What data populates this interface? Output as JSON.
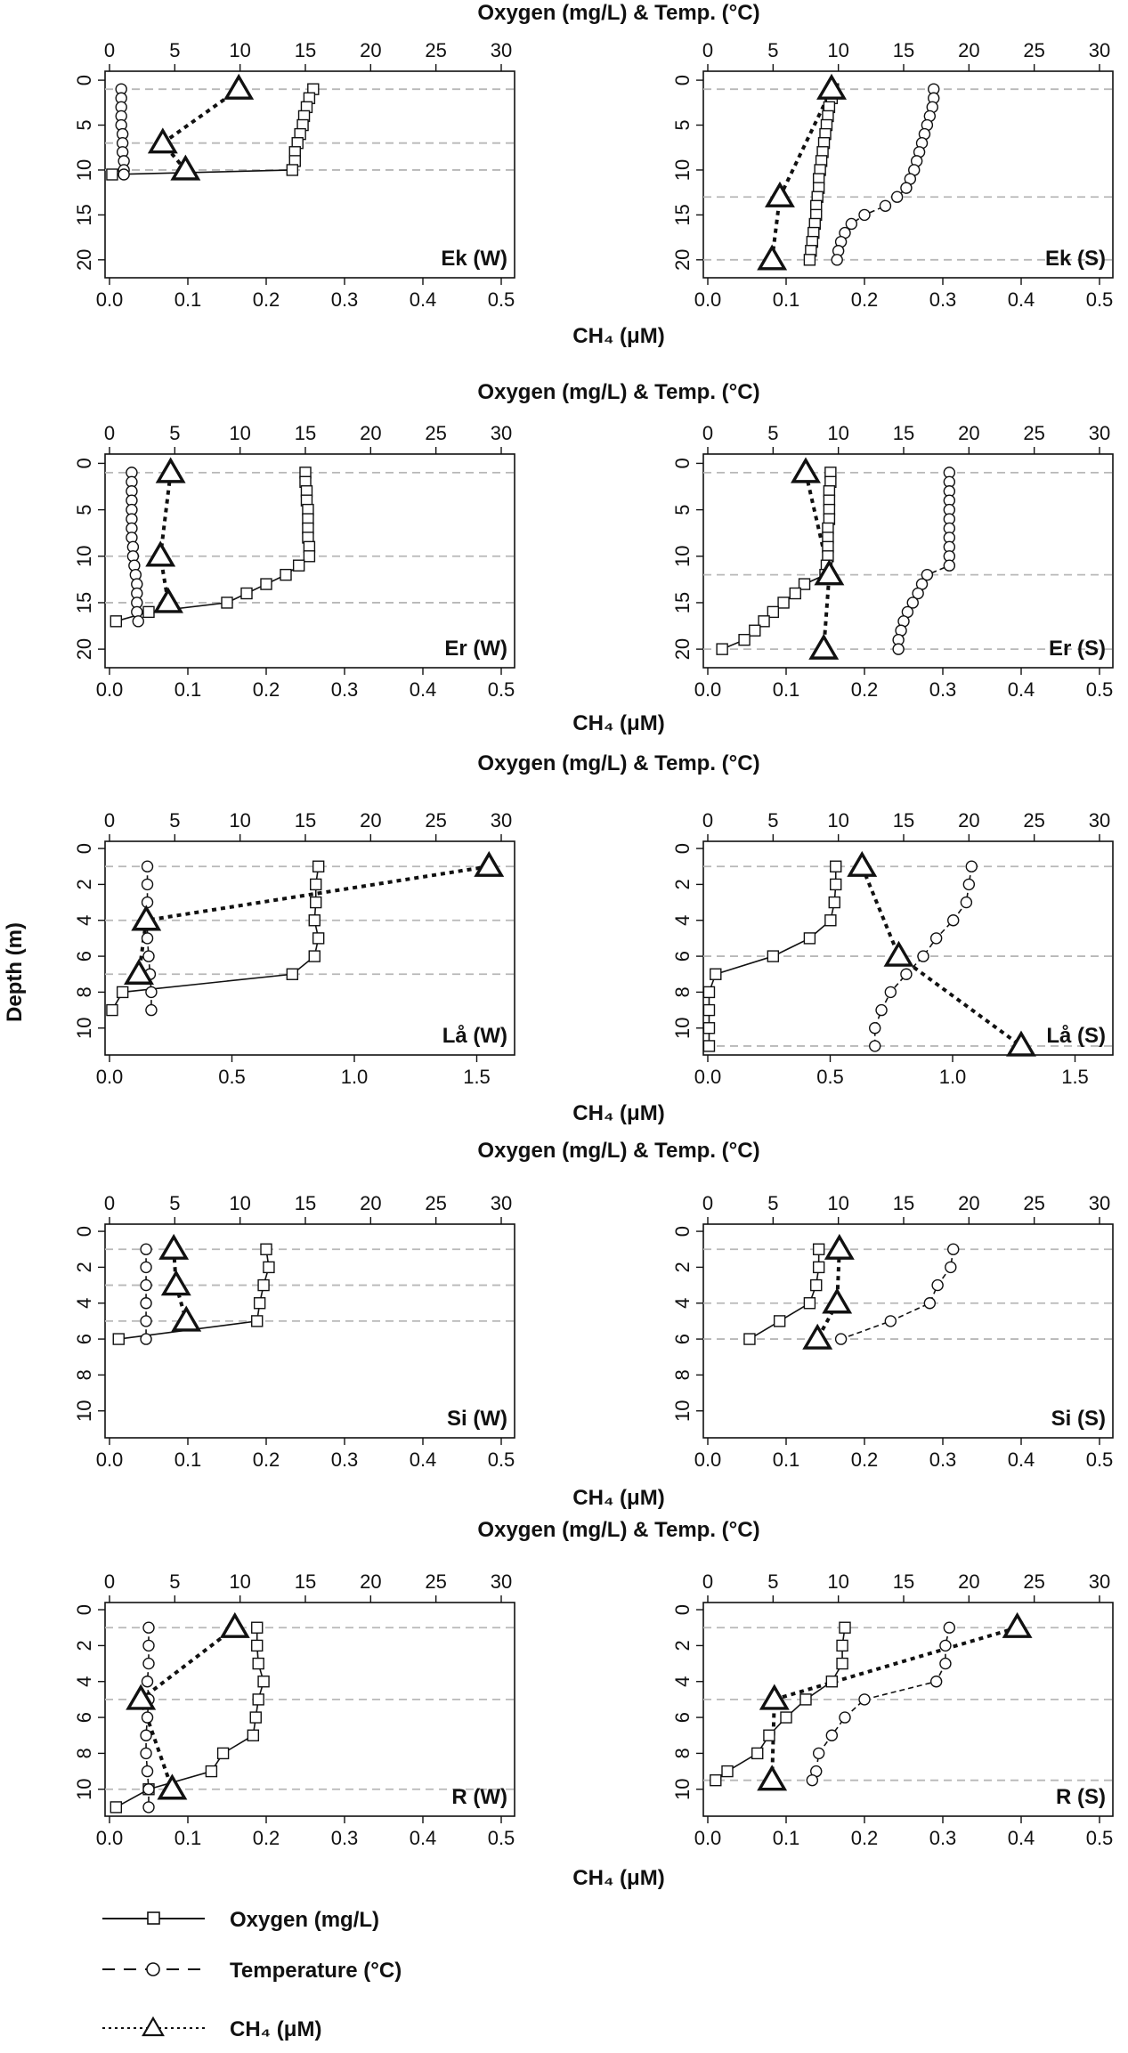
{
  "top_axis_label": "Oxygen (mg/L) & Temp. (°C)",
  "bottom_axis_label": "CH₄ (μM)",
  "y_axis_label": "Depth (m)",
  "legend": {
    "oxygen": "Oxygen (mg/L)",
    "temperature": "Temperature (°C)",
    "ch4": "CH₄ (μM)"
  },
  "chart_data": [
    {
      "type": "line",
      "label": "Ek (W)",
      "ylim": [
        22,
        -1
      ],
      "yticks": [
        0,
        5,
        10,
        15,
        20
      ],
      "top_ticks": [
        0,
        5,
        10,
        15,
        20,
        25,
        30
      ],
      "top_lim": [
        0,
        30
      ],
      "bottom_ticks": [
        "0.0",
        "0.1",
        "0.2",
        "0.3",
        "0.4",
        "0.5"
      ],
      "bottom_lim": [
        0,
        0.5
      ],
      "hlines": [
        1,
        7,
        10
      ],
      "oxygen": {
        "depth": [
          1,
          2,
          3,
          4,
          5,
          6,
          7,
          8,
          9,
          10,
          10.5
        ],
        "values": [
          15.6,
          15.3,
          15.1,
          14.9,
          14.8,
          14.6,
          14.4,
          14.2,
          14.2,
          14.0,
          0.2
        ]
      },
      "temperature": {
        "depth": [
          1,
          2,
          3,
          4,
          5,
          6,
          7,
          8,
          9,
          10,
          10.5
        ],
        "values": [
          0.9,
          0.9,
          0.9,
          0.9,
          0.9,
          1.0,
          1.0,
          1.0,
          1.1,
          1.1,
          1.1
        ]
      },
      "ch4": {
        "depth": [
          1,
          7,
          10
        ],
        "values": [
          0.165,
          0.068,
          0.097
        ]
      }
    },
    {
      "type": "line",
      "label": "Ek (S)",
      "ylim": [
        22,
        -1
      ],
      "yticks": [
        0,
        5,
        10,
        15,
        20
      ],
      "top_ticks": [
        0,
        5,
        10,
        15,
        20,
        25,
        30
      ],
      "top_lim": [
        0,
        30
      ],
      "bottom_ticks": [
        "0.0",
        "0.1",
        "0.2",
        "0.3",
        "0.4",
        "0.5"
      ],
      "bottom_lim": [
        0,
        0.5
      ],
      "hlines": [
        1,
        13,
        20
      ],
      "oxygen": {
        "depth": [
          1,
          2,
          3,
          4,
          5,
          6,
          7,
          8,
          9,
          10,
          11,
          12,
          13,
          14,
          15,
          16,
          17,
          18,
          19,
          20
        ],
        "values": [
          9.6,
          9.5,
          9.3,
          9.2,
          9.1,
          9.0,
          8.9,
          8.8,
          8.7,
          8.6,
          8.5,
          8.5,
          8.4,
          8.3,
          8.3,
          8.2,
          8.1,
          8.0,
          7.9,
          7.8
        ]
      },
      "temperature": {
        "depth": [
          1,
          2,
          3,
          4,
          5,
          6,
          7,
          8,
          9,
          10,
          11,
          12,
          13,
          14,
          15,
          16,
          17,
          18,
          19,
          20
        ],
        "values": [
          17.3,
          17.3,
          17.2,
          17.0,
          16.8,
          16.6,
          16.4,
          16.2,
          16.0,
          15.8,
          15.5,
          15.2,
          14.5,
          13.6,
          12.0,
          11.0,
          10.5,
          10.2,
          10.0,
          9.9
        ]
      },
      "ch4": {
        "depth": [
          1,
          13,
          20
        ],
        "values": [
          0.158,
          0.092,
          0.082
        ]
      }
    },
    {
      "type": "line",
      "label": "Er (W)",
      "ylim": [
        22,
        -1
      ],
      "yticks": [
        0,
        5,
        10,
        15,
        20
      ],
      "top_ticks": [
        0,
        5,
        10,
        15,
        20,
        25,
        30
      ],
      "top_lim": [
        0,
        30
      ],
      "bottom_ticks": [
        "0.0",
        "0.1",
        "0.2",
        "0.3",
        "0.4",
        "0.5"
      ],
      "bottom_lim": [
        0,
        0.5
      ],
      "hlines": [
        1,
        10,
        15
      ],
      "oxygen": {
        "depth": [
          1,
          2,
          3,
          4,
          5,
          6,
          7,
          8,
          9,
          10,
          11,
          12,
          13,
          14,
          15,
          16,
          17
        ],
        "values": [
          15.0,
          15.0,
          15.1,
          15.1,
          15.2,
          15.2,
          15.2,
          15.2,
          15.3,
          15.3,
          14.5,
          13.5,
          12.0,
          10.5,
          9.0,
          3.0,
          0.5
        ]
      },
      "temperature": {
        "depth": [
          1,
          2,
          3,
          4,
          5,
          6,
          7,
          8,
          9,
          10,
          11,
          12,
          13,
          14,
          15,
          16,
          17
        ],
        "values": [
          1.7,
          1.7,
          1.7,
          1.7,
          1.7,
          1.7,
          1.7,
          1.7,
          1.8,
          1.8,
          1.9,
          2.0,
          2.1,
          2.1,
          2.1,
          2.1,
          2.2
        ]
      },
      "ch4": {
        "depth": [
          1,
          10,
          15
        ],
        "values": [
          0.078,
          0.065,
          0.075
        ]
      }
    },
    {
      "type": "line",
      "label": "Er (S)",
      "ylim": [
        22,
        -1
      ],
      "yticks": [
        0,
        5,
        10,
        15,
        20
      ],
      "top_ticks": [
        0,
        5,
        10,
        15,
        20,
        25,
        30
      ],
      "top_lim": [
        0,
        30
      ],
      "bottom_ticks": [
        "0.0",
        "0.1",
        "0.2",
        "0.3",
        "0.4",
        "0.5"
      ],
      "bottom_lim": [
        0,
        0.5
      ],
      "hlines": [
        1,
        12,
        20
      ],
      "oxygen": {
        "depth": [
          1,
          2,
          3,
          4,
          5,
          6,
          7,
          8,
          9,
          10,
          11,
          12,
          13,
          14,
          15,
          16,
          17,
          18,
          19,
          20
        ],
        "values": [
          9.4,
          9.4,
          9.3,
          9.3,
          9.3,
          9.3,
          9.2,
          9.2,
          9.2,
          9.2,
          9.1,
          9.0,
          7.4,
          6.7,
          5.8,
          5.0,
          4.3,
          3.6,
          2.8,
          1.1
        ]
      },
      "temperature": {
        "depth": [
          1,
          2,
          3,
          4,
          5,
          6,
          7,
          8,
          9,
          10,
          11,
          12,
          13,
          14,
          15,
          16,
          17,
          18,
          19,
          20
        ],
        "values": [
          18.5,
          18.5,
          18.5,
          18.5,
          18.5,
          18.5,
          18.5,
          18.5,
          18.5,
          18.5,
          18.5,
          16.8,
          16.4,
          16.1,
          15.7,
          15.3,
          15.0,
          14.8,
          14.6,
          14.6
        ]
      },
      "ch4": {
        "depth": [
          1,
          12,
          20
        ],
        "values": [
          0.125,
          0.155,
          0.148
        ]
      }
    },
    {
      "type": "line",
      "label": "Lå (W)",
      "ylim": [
        11.5,
        -0.4
      ],
      "yticks": [
        0,
        2,
        4,
        6,
        8,
        10
      ],
      "top_ticks": [
        0,
        5,
        10,
        15,
        20,
        25,
        30
      ],
      "top_lim": [
        0,
        30
      ],
      "bottom_ticks": [
        "0.0",
        "0.5",
        "1.0",
        "1.5"
      ],
      "bottom_lim": [
        0,
        1.6
      ],
      "hlines": [
        1,
        4,
        7
      ],
      "oxygen": {
        "depth": [
          1,
          2,
          3,
          4,
          5,
          6,
          7,
          8,
          9
        ],
        "values": [
          16.0,
          15.8,
          15.8,
          15.7,
          16.0,
          15.7,
          14.0,
          1.0,
          0.2
        ]
      },
      "temperature": {
        "depth": [
          1,
          2,
          3,
          4,
          5,
          6,
          7,
          8,
          9
        ],
        "values": [
          2.9,
          2.9,
          2.9,
          2.9,
          2.9,
          3.0,
          3.1,
          3.2,
          3.2
        ]
      },
      "ch4": {
        "depth": [
          1,
          4,
          7
        ],
        "values": [
          1.55,
          0.15,
          0.12
        ]
      }
    },
    {
      "type": "line",
      "label": "Lå (S)",
      "ylim": [
        11.5,
        -0.4
      ],
      "yticks": [
        0,
        2,
        4,
        6,
        8,
        10
      ],
      "top_ticks": [
        0,
        5,
        10,
        15,
        20,
        25,
        30
      ],
      "top_lim": [
        0,
        30
      ],
      "bottom_ticks": [
        "0.0",
        "0.5",
        "1.0",
        "1.5"
      ],
      "bottom_lim": [
        0,
        1.6
      ],
      "hlines": [
        1,
        6,
        11
      ],
      "oxygen": {
        "depth": [
          1,
          2,
          3,
          4,
          5,
          6,
          7,
          8,
          9,
          10,
          11
        ],
        "values": [
          9.8,
          9.8,
          9.7,
          9.4,
          7.8,
          5.0,
          0.6,
          0.1,
          0.1,
          0.1,
          0.1
        ]
      },
      "temperature": {
        "depth": [
          1,
          2,
          3,
          4,
          5,
          6,
          7,
          8,
          9,
          10,
          11
        ],
        "values": [
          20.2,
          20.0,
          19.8,
          18.8,
          17.5,
          16.5,
          15.2,
          14.0,
          13.3,
          12.8,
          12.8
        ]
      },
      "ch4": {
        "depth": [
          1,
          6,
          11
        ],
        "values": [
          0.63,
          0.78,
          1.28
        ]
      }
    },
    {
      "type": "line",
      "label": "Si (W)",
      "ylim": [
        11.5,
        -0.4
      ],
      "yticks": [
        0,
        2,
        4,
        6,
        8,
        10
      ],
      "top_ticks": [
        0,
        5,
        10,
        15,
        20,
        25,
        30
      ],
      "top_lim": [
        0,
        30
      ],
      "bottom_ticks": [
        "0.0",
        "0.1",
        "0.2",
        "0.3",
        "0.4",
        "0.5"
      ],
      "bottom_lim": [
        0,
        0.5
      ],
      "hlines": [
        1,
        3,
        5
      ],
      "oxygen": {
        "depth": [
          1,
          2,
          3,
          4,
          5,
          6
        ],
        "values": [
          12.0,
          12.2,
          11.8,
          11.5,
          11.3,
          0.7
        ]
      },
      "temperature": {
        "depth": [
          1,
          2,
          3,
          4,
          5,
          6
        ],
        "values": [
          2.8,
          2.8,
          2.8,
          2.8,
          2.8,
          2.8
        ]
      },
      "ch4": {
        "depth": [
          1,
          3,
          5
        ],
        "values": [
          0.082,
          0.085,
          0.098
        ]
      }
    },
    {
      "type": "line",
      "label": "Si (S)",
      "ylim": [
        11.5,
        -0.4
      ],
      "yticks": [
        0,
        2,
        4,
        6,
        8,
        10
      ],
      "top_ticks": [
        0,
        5,
        10,
        15,
        20,
        25,
        30
      ],
      "top_lim": [
        0,
        30
      ],
      "bottom_ticks": [
        "0.0",
        "0.1",
        "0.2",
        "0.3",
        "0.4",
        "0.5"
      ],
      "bottom_lim": [
        0,
        0.5
      ],
      "hlines": [
        1,
        4,
        6
      ],
      "oxygen": {
        "depth": [
          1,
          2,
          3,
          4,
          5,
          6
        ],
        "values": [
          8.5,
          8.5,
          8.3,
          7.8,
          5.5,
          3.2
        ]
      },
      "temperature": {
        "depth": [
          1,
          2,
          3,
          4,
          5,
          6
        ],
        "values": [
          18.8,
          18.6,
          17.6,
          17.0,
          14.0,
          10.2
        ]
      },
      "ch4": {
        "depth": [
          1,
          4,
          6
        ],
        "values": [
          0.168,
          0.165,
          0.14
        ]
      }
    },
    {
      "type": "line",
      "label": "R (W)",
      "ylim": [
        11.5,
        -0.4
      ],
      "yticks": [
        0,
        2,
        4,
        6,
        8,
        10
      ],
      "top_ticks": [
        0,
        5,
        10,
        15,
        20,
        25,
        30
      ],
      "top_lim": [
        0,
        30
      ],
      "bottom_ticks": [
        "0.0",
        "0.1",
        "0.2",
        "0.3",
        "0.4",
        "0.5"
      ],
      "bottom_lim": [
        0,
        0.5
      ],
      "hlines": [
        1,
        5,
        10
      ],
      "oxygen": {
        "depth": [
          1,
          2,
          3,
          4,
          5,
          6,
          7,
          8,
          9,
          10,
          11
        ],
        "values": [
          11.3,
          11.3,
          11.4,
          11.8,
          11.4,
          11.2,
          11.0,
          8.7,
          7.8,
          3.0,
          0.5
        ]
      },
      "temperature": {
        "depth": [
          1,
          2,
          3,
          4,
          5,
          6,
          7,
          8,
          9,
          10,
          11
        ],
        "values": [
          3.0,
          3.0,
          3.0,
          2.9,
          3.0,
          2.9,
          2.8,
          2.8,
          2.9,
          3.0,
          3.0
        ]
      },
      "ch4": {
        "depth": [
          1,
          5,
          10
        ],
        "values": [
          0.16,
          0.04,
          0.08
        ]
      }
    },
    {
      "type": "line",
      "label": "R (S)",
      "ylim": [
        11.5,
        -0.4
      ],
      "yticks": [
        0,
        2,
        4,
        6,
        8,
        10
      ],
      "top_ticks": [
        0,
        5,
        10,
        15,
        20,
        25,
        30
      ],
      "top_lim": [
        0,
        30
      ],
      "bottom_ticks": [
        "0.0",
        "0.1",
        "0.2",
        "0.3",
        "0.4",
        "0.5"
      ],
      "bottom_lim": [
        0,
        0.5
      ],
      "hlines": [
        1,
        5,
        9.5
      ],
      "oxygen": {
        "depth": [
          1,
          2,
          3,
          4,
          5,
          6,
          7,
          8,
          9,
          9.5
        ],
        "values": [
          10.5,
          10.3,
          10.3,
          9.5,
          7.5,
          6.0,
          4.7,
          3.8,
          1.5,
          0.6
        ]
      },
      "temperature": {
        "depth": [
          1,
          2,
          3,
          4,
          5,
          6,
          7,
          8,
          9,
          9.5
        ],
        "values": [
          18.5,
          18.2,
          18.2,
          17.5,
          12.0,
          10.5,
          9.5,
          8.5,
          8.3,
          8.0
        ]
      },
      "ch4": {
        "depth": [
          1,
          5,
          9.5
        ],
        "values": [
          0.395,
          0.085,
          0.082
        ]
      }
    }
  ]
}
